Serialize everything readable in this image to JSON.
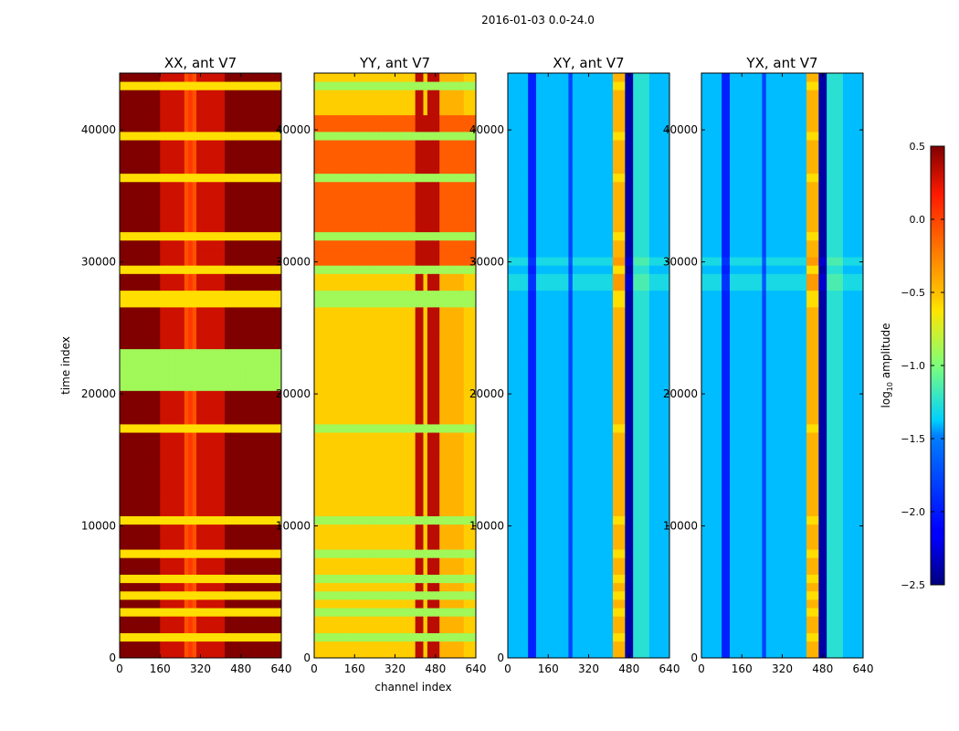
{
  "chart_data": {
    "type": "heatmap",
    "suptitle": "2016-01-03 0.0-24.0",
    "colormap": "jet",
    "panels": [
      {
        "title": "XX, ant V7",
        "ylabel": "time index",
        "xlabel": "",
        "style": "xx"
      },
      {
        "title": "YY, ant V7",
        "ylabel": "",
        "xlabel": "channel index",
        "style": "yy"
      },
      {
        "title": "XY, ant V7",
        "ylabel": "",
        "xlabel": "",
        "style": "cross"
      },
      {
        "title": "YX, ant V7",
        "ylabel": "",
        "xlabel": "",
        "style": "cross"
      }
    ],
    "xlim": [
      0,
      640
    ],
    "ylim": [
      0,
      44300
    ],
    "xticks": [
      0,
      160,
      320,
      480,
      640
    ],
    "xtick_labels": [
      "0",
      "160",
      "320",
      "480",
      "640"
    ],
    "yticks": [
      0,
      10000,
      20000,
      30000,
      40000
    ],
    "ytick_labels": [
      "0",
      "10000",
      "20000",
      "30000",
      "40000"
    ],
    "colorbar": {
      "label": "log10 amplitude",
      "label_main": "log",
      "label_sub": "10",
      "label_rest": " amplitude",
      "vmin": -2.5,
      "vmax": 0.5,
      "ticks": [
        0.5,
        0.0,
        -0.5,
        -1.0,
        -1.5,
        -2.0,
        -2.5
      ],
      "tick_labels": [
        "0.5",
        "0.0",
        "−0.5",
        "−1.0",
        "−1.5",
        "−2.0",
        "−2.5"
      ]
    }
  }
}
